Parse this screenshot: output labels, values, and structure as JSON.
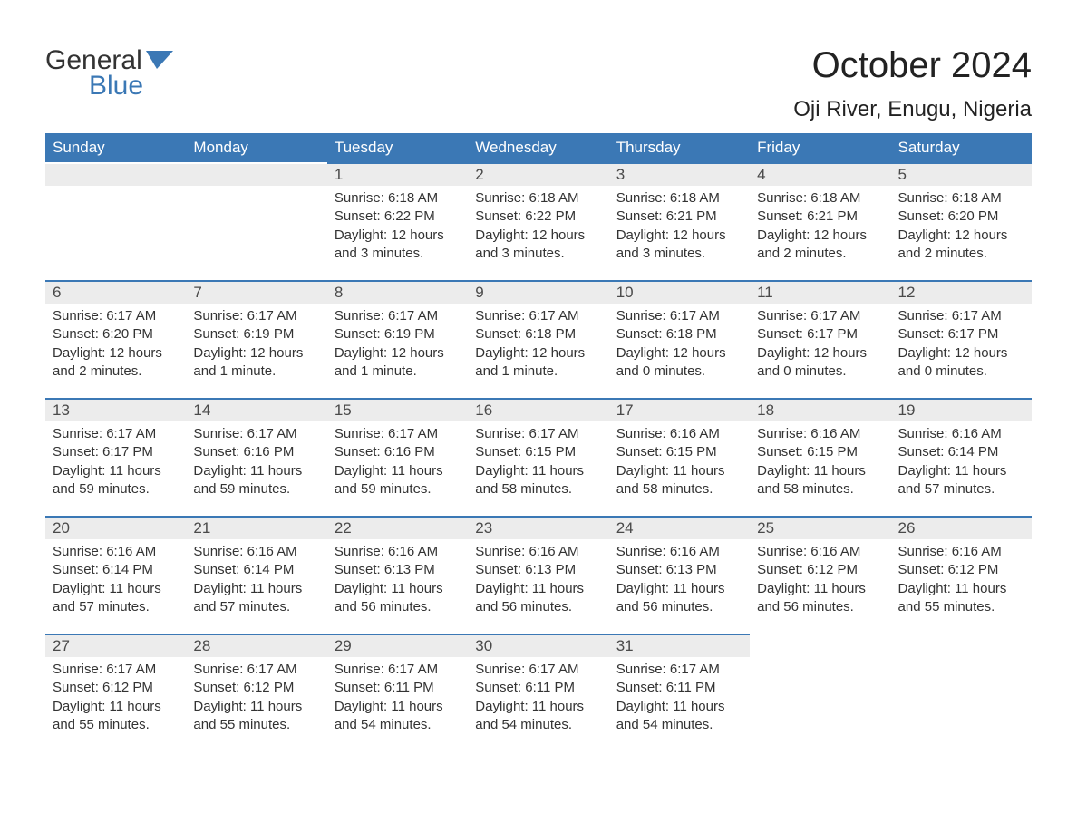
{
  "logo": {
    "text1": "General",
    "text2": "Blue",
    "flag_color": "#3b78b5"
  },
  "title": "October 2024",
  "location": "Oji River, Enugu, Nigeria",
  "colors": {
    "header_bg": "#3b78b5",
    "header_text": "#ffffff",
    "daynum_bg": "#ececec",
    "border": "#3b78b5",
    "body_text": "#333333"
  },
  "weekdays": [
    "Sunday",
    "Monday",
    "Tuesday",
    "Wednesday",
    "Thursday",
    "Friday",
    "Saturday"
  ],
  "weeks": [
    [
      null,
      null,
      {
        "d": "1",
        "sr": "6:18 AM",
        "ss": "6:22 PM",
        "dl": "12 hours and 3 minutes."
      },
      {
        "d": "2",
        "sr": "6:18 AM",
        "ss": "6:22 PM",
        "dl": "12 hours and 3 minutes."
      },
      {
        "d": "3",
        "sr": "6:18 AM",
        "ss": "6:21 PM",
        "dl": "12 hours and 3 minutes."
      },
      {
        "d": "4",
        "sr": "6:18 AM",
        "ss": "6:21 PM",
        "dl": "12 hours and 2 minutes."
      },
      {
        "d": "5",
        "sr": "6:18 AM",
        "ss": "6:20 PM",
        "dl": "12 hours and 2 minutes."
      }
    ],
    [
      {
        "d": "6",
        "sr": "6:17 AM",
        "ss": "6:20 PM",
        "dl": "12 hours and 2 minutes."
      },
      {
        "d": "7",
        "sr": "6:17 AM",
        "ss": "6:19 PM",
        "dl": "12 hours and 1 minute."
      },
      {
        "d": "8",
        "sr": "6:17 AM",
        "ss": "6:19 PM",
        "dl": "12 hours and 1 minute."
      },
      {
        "d": "9",
        "sr": "6:17 AM",
        "ss": "6:18 PM",
        "dl": "12 hours and 1 minute."
      },
      {
        "d": "10",
        "sr": "6:17 AM",
        "ss": "6:18 PM",
        "dl": "12 hours and 0 minutes."
      },
      {
        "d": "11",
        "sr": "6:17 AM",
        "ss": "6:17 PM",
        "dl": "12 hours and 0 minutes."
      },
      {
        "d": "12",
        "sr": "6:17 AM",
        "ss": "6:17 PM",
        "dl": "12 hours and 0 minutes."
      }
    ],
    [
      {
        "d": "13",
        "sr": "6:17 AM",
        "ss": "6:17 PM",
        "dl": "11 hours and 59 minutes."
      },
      {
        "d": "14",
        "sr": "6:17 AM",
        "ss": "6:16 PM",
        "dl": "11 hours and 59 minutes."
      },
      {
        "d": "15",
        "sr": "6:17 AM",
        "ss": "6:16 PM",
        "dl": "11 hours and 59 minutes."
      },
      {
        "d": "16",
        "sr": "6:17 AM",
        "ss": "6:15 PM",
        "dl": "11 hours and 58 minutes."
      },
      {
        "d": "17",
        "sr": "6:16 AM",
        "ss": "6:15 PM",
        "dl": "11 hours and 58 minutes."
      },
      {
        "d": "18",
        "sr": "6:16 AM",
        "ss": "6:15 PM",
        "dl": "11 hours and 58 minutes."
      },
      {
        "d": "19",
        "sr": "6:16 AM",
        "ss": "6:14 PM",
        "dl": "11 hours and 57 minutes."
      }
    ],
    [
      {
        "d": "20",
        "sr": "6:16 AM",
        "ss": "6:14 PM",
        "dl": "11 hours and 57 minutes."
      },
      {
        "d": "21",
        "sr": "6:16 AM",
        "ss": "6:14 PM",
        "dl": "11 hours and 57 minutes."
      },
      {
        "d": "22",
        "sr": "6:16 AM",
        "ss": "6:13 PM",
        "dl": "11 hours and 56 minutes."
      },
      {
        "d": "23",
        "sr": "6:16 AM",
        "ss": "6:13 PM",
        "dl": "11 hours and 56 minutes."
      },
      {
        "d": "24",
        "sr": "6:16 AM",
        "ss": "6:13 PM",
        "dl": "11 hours and 56 minutes."
      },
      {
        "d": "25",
        "sr": "6:16 AM",
        "ss": "6:12 PM",
        "dl": "11 hours and 56 minutes."
      },
      {
        "d": "26",
        "sr": "6:16 AM",
        "ss": "6:12 PM",
        "dl": "11 hours and 55 minutes."
      }
    ],
    [
      {
        "d": "27",
        "sr": "6:17 AM",
        "ss": "6:12 PM",
        "dl": "11 hours and 55 minutes."
      },
      {
        "d": "28",
        "sr": "6:17 AM",
        "ss": "6:12 PM",
        "dl": "11 hours and 55 minutes."
      },
      {
        "d": "29",
        "sr": "6:17 AM",
        "ss": "6:11 PM",
        "dl": "11 hours and 54 minutes."
      },
      {
        "d": "30",
        "sr": "6:17 AM",
        "ss": "6:11 PM",
        "dl": "11 hours and 54 minutes."
      },
      {
        "d": "31",
        "sr": "6:17 AM",
        "ss": "6:11 PM",
        "dl": "11 hours and 54 minutes."
      },
      null,
      null
    ]
  ],
  "labels": {
    "sunrise": "Sunrise:",
    "sunset": "Sunset:",
    "daylight": "Daylight:"
  }
}
